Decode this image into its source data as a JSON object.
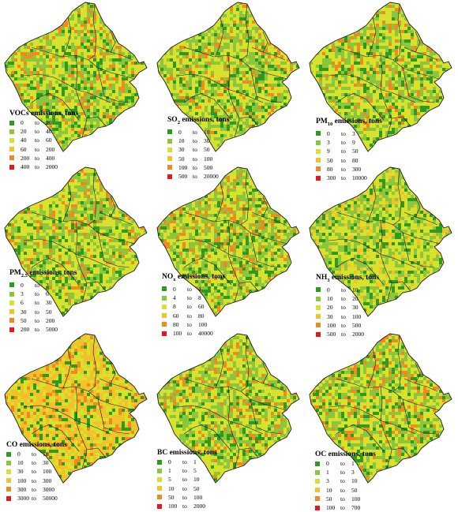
{
  "colors": {
    "c1": "#2e9a1f",
    "c2": "#8cc63f",
    "c3": "#d8e22c",
    "c4": "#f2c22a",
    "c5": "#f08a1e",
    "c6": "#e8171b",
    "boundary": "#1a1a1a"
  },
  "panels": [
    {
      "title_prefix": "VOCs",
      "title_sub": "",
      "title_suffix": " emissions, tons",
      "ranges": [
        [
          "0",
          "20"
        ],
        [
          "20",
          "40"
        ],
        [
          "40",
          "60"
        ],
        [
          "60",
          "200"
        ],
        [
          "200",
          "400"
        ],
        [
          "400",
          "2000"
        ]
      ],
      "dominant_levels": [
        1,
        2,
        3,
        5
      ]
    },
    {
      "title_prefix": "SO",
      "title_sub": "2",
      "title_suffix": " emissions, tons",
      "ranges": [
        [
          "0",
          "10"
        ],
        [
          "10",
          "30"
        ],
        [
          "30",
          "50"
        ],
        [
          "50",
          "100"
        ],
        [
          "100",
          "500"
        ],
        [
          "500",
          "20000"
        ]
      ],
      "dominant_levels": [
        1,
        2,
        3,
        5
      ]
    },
    {
      "title_prefix": "PM",
      "title_sub": "10",
      "title_suffix": " emissions, tons",
      "ranges": [
        [
          "0",
          "3"
        ],
        [
          "3",
          "9"
        ],
        [
          "9",
          "50"
        ],
        [
          "50",
          "80"
        ],
        [
          "80",
          "300"
        ],
        [
          "300",
          "10000"
        ]
      ],
      "dominant_levels": [
        1,
        2,
        3,
        4,
        5
      ]
    },
    {
      "title_prefix": "PM",
      "title_sub": "2.5",
      "title_suffix": " emissions, tons",
      "ranges": [
        [
          "0",
          "3"
        ],
        [
          "3",
          "6"
        ],
        [
          "6",
          "30"
        ],
        [
          "30",
          "50"
        ],
        [
          "50",
          "200"
        ],
        [
          "200",
          "5000"
        ]
      ],
      "dominant_levels": [
        1,
        2,
        3,
        4,
        5
      ]
    },
    {
      "title_prefix": "NO",
      "title_sub": "x",
      "title_suffix": " emissions, tons",
      "ranges": [
        [
          "0",
          "4"
        ],
        [
          "4",
          "8"
        ],
        [
          "8",
          "60"
        ],
        [
          "60",
          "80"
        ],
        [
          "80",
          "100"
        ],
        [
          "100",
          "40000"
        ]
      ],
      "dominant_levels": [
        1,
        2,
        3,
        5
      ]
    },
    {
      "title_prefix": "NH",
      "title_sub": "3",
      "title_suffix": " emissions, tons",
      "ranges": [
        [
          "0",
          "10"
        ],
        [
          "10",
          "20"
        ],
        [
          "20",
          "30"
        ],
        [
          "30",
          "100"
        ],
        [
          "100",
          "500"
        ],
        [
          "500",
          "2000"
        ]
      ],
      "dominant_levels": [
        1,
        2,
        3,
        4
      ]
    },
    {
      "title_prefix": "CO",
      "title_sub": "",
      "title_suffix": " emissions, tons",
      "ranges": [
        [
          "0",
          "10"
        ],
        [
          "10",
          "30"
        ],
        [
          "30",
          "100"
        ],
        [
          "100",
          "300"
        ],
        [
          "300",
          "3000"
        ],
        [
          "3000",
          "50000"
        ]
      ],
      "dominant_levels": [
        1,
        3,
        4,
        5
      ]
    },
    {
      "title_prefix": "BC",
      "title_sub": "",
      "title_suffix": " emissions, tons",
      "ranges": [
        [
          "0",
          "1"
        ],
        [
          "1",
          "5"
        ],
        [
          "5",
          "10"
        ],
        [
          "10",
          "50"
        ],
        [
          "50",
          "100"
        ],
        [
          "100",
          "2000"
        ]
      ],
      "dominant_levels": [
        1,
        2,
        3,
        5
      ]
    },
    {
      "title_prefix": "OC",
      "title_sub": "",
      "title_suffix": " emissions, tons",
      "ranges": [
        [
          "0",
          "1"
        ],
        [
          "1",
          "3"
        ],
        [
          "3",
          "10"
        ],
        [
          "10",
          "50"
        ],
        [
          "50",
          "100"
        ],
        [
          "100",
          "700"
        ]
      ],
      "dominant_levels": [
        1,
        2,
        3,
        5
      ]
    }
  ]
}
